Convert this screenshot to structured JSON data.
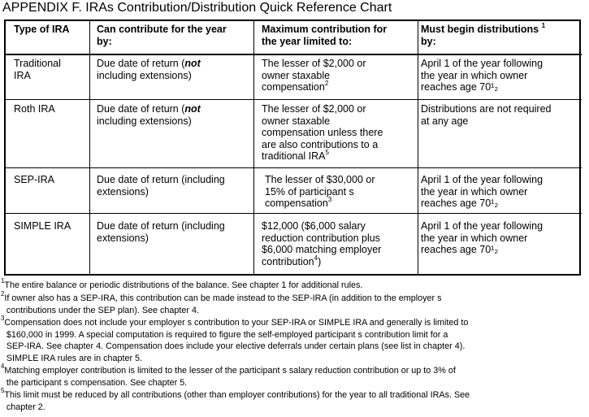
{
  "title": "APPENDIX F. IRAs Contribution/Distribution Quick Reference Chart",
  "table": {
    "headers": [
      {
        "lines": [
          "Type of IRA"
        ]
      },
      {
        "lines": [
          "Can contribute for the year",
          "by:"
        ]
      },
      {
        "lines": [
          "Maximum contribution for",
          "the year limited to:"
        ]
      },
      {
        "lines": [
          "Must begin distributions",
          "by:"
        ],
        "sup": "1"
      }
    ],
    "rows": [
      {
        "type": [
          "Traditional",
          "IRA"
        ],
        "contribute": {
          "l1a": "Due date of return (",
          "l1b": "not",
          "l2": "including extensions)"
        },
        "maximum": {
          "lines": [
            "The lesser of $2,000 or",
            "owner  staxable",
            "compensation"
          ],
          "sup": "2"
        },
        "distributions": [
          "April 1 of the year following",
          "the year in which owner",
          "reaches age 70¹₂"
        ]
      },
      {
        "type": [
          "Roth IRA"
        ],
        "contribute": {
          "l1a": "Due date of return (",
          "l1b": "not",
          "l2": "including extensions)"
        },
        "maximum": {
          "lines": [
            "The lesser of $2,000 or",
            "owner  staxable",
            "compensation unless there",
            "are also contributions to a",
            "traditional IRA"
          ],
          "sup": "5"
        },
        "distributions": [
          "Distributions are not required",
          "at any age"
        ]
      },
      {
        "type": [
          "SEP-IRA"
        ],
        "contribute": {
          "lines": [
            "Due date of return (including",
            "extensions)"
          ]
        },
        "maximum": {
          "lines": [
            "The lesser of $30,000 or",
            "15% of participant  s",
            "compensation"
          ],
          "sup": "3"
        },
        "distributions": [
          "April 1 of the year following",
          "the year in which owner",
          "reaches age 70¹₂"
        ]
      },
      {
        "type": [
          "SIMPLE IRA"
        ],
        "contribute": {
          "lines": [
            "Due date of return (including",
            "extensions)"
          ]
        },
        "maximum": {
          "lines": [
            "$12,000 ($6,000 salary",
            "reduction contribution plus",
            "$6,000 matching employer",
            "contribution"
          ],
          "sup": "4",
          "tail": ")"
        },
        "distributions": [
          "April 1 of the year following",
          "the year in which owner",
          "reaches age 70¹₂"
        ]
      }
    ]
  },
  "footnotes": [
    {
      "mark": "1",
      "lines": [
        "The entire balance or periodic distributions of the balance. See chapter 1 for additional rules."
      ]
    },
    {
      "mark": "2",
      "lines": [
        "If owner also has a SEP-IRA, this contribution can be made instead to the SEP-IRA (in addition to the employer  s",
        "contributions under the SEP plan). See chapter 4."
      ]
    },
    {
      "mark": "3",
      "lines": [
        "Compensation does not include your employer  s contribution to your SEP-IRA or SIMPLE IRA and generally is limited to",
        "$160,000 in 1999. A special computation is required to figure the self-employed participant  s contribution limit for a",
        "SEP-IRA. See chapter 4. Compensation does include your elective deferrals under certain plans (see list in chapter 4).",
        "SIMPLE IRA rules are in chapter 5."
      ]
    },
    {
      "mark": "4",
      "lines": [
        "Matching employer contribution is limited to the lesser of the participant  s salary reduction contribution or up to 3% of",
        "the participant  s compensation. See chapter 5."
      ]
    },
    {
      "mark": "5",
      "lines": [
        "This limit must be reduced by all contributions (other than employer contributions) for the year to all traditional IRAs. See",
        "chapter 2."
      ]
    }
  ]
}
